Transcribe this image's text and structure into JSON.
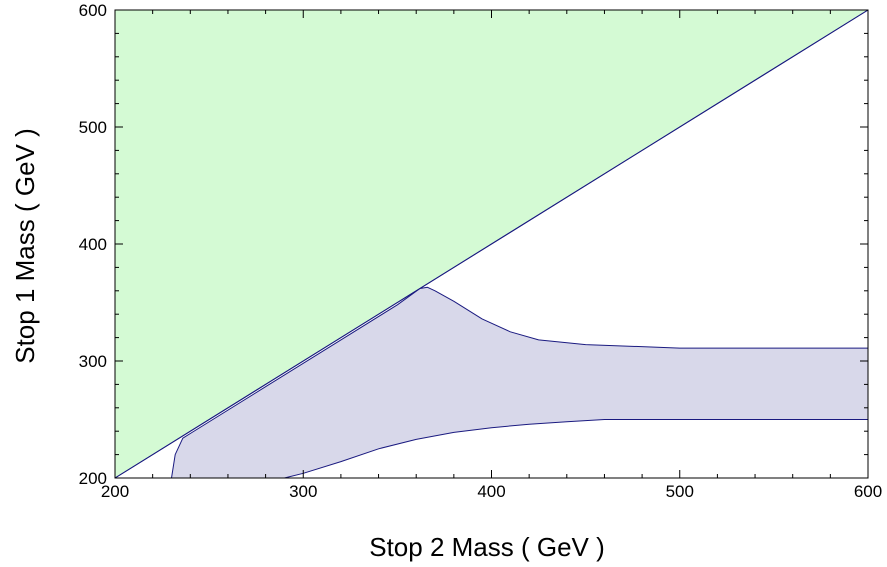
{
  "chart_data": {
    "type": "area",
    "xlabel": "Stop 2 Mass ( GeV )",
    "ylabel": "Stop 1 Mass ( GeV )",
    "xlim": [
      200,
      600
    ],
    "ylim": [
      200,
      600
    ],
    "x_ticks": [
      200,
      300,
      400,
      500,
      600
    ],
    "y_ticks": [
      200,
      300,
      400,
      500,
      600
    ],
    "grid": false,
    "regions": [
      {
        "fill_color": "#d4fad4",
        "edge_color": "#1a1a80",
        "points": [
          [
            200,
            200
          ],
          [
            600,
            600
          ],
          [
            200,
            600
          ]
        ]
      },
      {
        "fill_color": "#d8d8ea",
        "edge_color": "#1a1a80",
        "points": [
          [
            230,
            200
          ],
          [
            232,
            220
          ],
          [
            236,
            234
          ],
          [
            240,
            238
          ],
          [
            280,
            278
          ],
          [
            320,
            318
          ],
          [
            350,
            348
          ],
          [
            362,
            362
          ],
          [
            366,
            363
          ],
          [
            370,
            360
          ],
          [
            380,
            351
          ],
          [
            395,
            336
          ],
          [
            410,
            325
          ],
          [
            425,
            318
          ],
          [
            450,
            314
          ],
          [
            500,
            311
          ],
          [
            600,
            311
          ],
          [
            600,
            250
          ],
          [
            460,
            250
          ],
          [
            440,
            248
          ],
          [
            420,
            246
          ],
          [
            400,
            243
          ],
          [
            380,
            239
          ],
          [
            360,
            233
          ],
          [
            340,
            225
          ],
          [
            320,
            214
          ],
          [
            300,
            204
          ],
          [
            290,
            200
          ]
        ]
      }
    ],
    "diagonal": {
      "color": "#1a1a80",
      "points": [
        [
          200,
          200
        ],
        [
          600,
          600
        ]
      ]
    }
  }
}
